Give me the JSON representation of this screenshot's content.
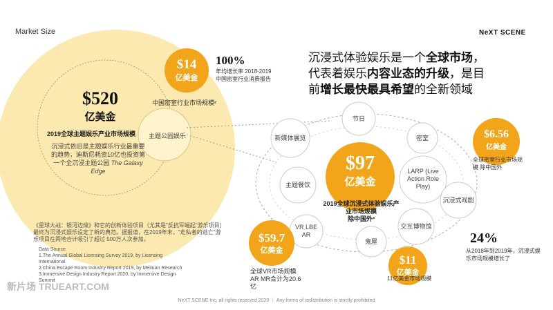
{
  "header": {
    "title": "Market Size",
    "logo": "NeXT SCENE"
  },
  "headline": {
    "line1_a": "沉浸式体验娱乐是一个",
    "line1_b": "全球市场",
    "line1_c": "，",
    "line2_a": "代表着娱乐",
    "line2_b": "内容业态的升级",
    "line2_c": "，是目",
    "line3_a": "前",
    "line3_b": "增长最快最具希望",
    "line3_c": "的全新领域"
  },
  "theme_park": {
    "value": "$520",
    "unit": "亿美金",
    "label": "2019全球主题娱乐产业市场规模",
    "desc_1": "沉浸式依旧是主题娱乐行业最重要",
    "desc_2": "的趋势，迪斯尼耗资10亿也投资第",
    "desc_3": "一个全沉浸主题公园",
    "desc_italic": "The Galaxy Edge",
    "inner_label": "主题公园娱乐"
  },
  "escape_cn": {
    "value": "$14",
    "unit": "亿美金",
    "label": "中国密室行业市场规模²",
    "growth": "100%",
    "growth_1": "年均增长率 2018-2019",
    "growth_2": "中国密室行业消费报告"
  },
  "center": {
    "value": "$97",
    "unit": "亿美金",
    "label_1": "2019全球沉浸式体验娱乐产",
    "label_2": "业市场规模",
    "label_3": "除中国外³"
  },
  "ring_items": {
    "festival": "节日",
    "new_media": "新媒体展览",
    "escape": "密室",
    "larp": "LARP (Live Action Role Play)",
    "theme_dining": "主题餐饮",
    "immersive_theatre": "沉浸式戏剧",
    "vr": "VR LBE AR",
    "interactive_museum": "交互博物馆",
    "haunted": "鬼屋"
  },
  "escape_world": {
    "value": "$6.56",
    "unit": "亿美金",
    "label_1": "全球密室行业市场规",
    "label_2": "模 除中国外"
  },
  "vr_market": {
    "value": "$59.7",
    "unit": "亿美金",
    "label_1": "全球VR市场规模",
    "label_2": "AR MR合计为20.6",
    "label_3": "亿"
  },
  "haunted_market": {
    "value": "$11",
    "unit": "亿美金",
    "label": "11亿美金市场规模"
  },
  "growth_24": {
    "value": "24%",
    "desc_1": "从2018年到2019年，沉浸式娱",
    "desc_2": "乐市场规模增长了"
  },
  "star_wars_note": {
    "line1": "《星球大战：银河边缘》和它的创新体验项目（尤其是\"反抗军崛起\"游乐项目）",
    "line2": "最终为沉浸式娱乐设定了新的典范。据报道，在2019年末，\"走私者的逃亡\"游",
    "line3": "乐项目在两地合计吸引了超过 500万人次参加。"
  },
  "sources": {
    "title": "Data Source",
    "s1": "1.The Annual Global Licensing Survey 2019, by Licensing",
    "s1b": "International",
    "s2": "2.China Escape Room Industry Report 2019, by Meituan Research",
    "s3": "3.Immersive Design Industry Report 2020, by Immersive Design",
    "s3b": "Summit"
  },
  "footer": "NeXT SCENE Inc, all rights reserved 2020 ｜ Any forms of redistribution is strictly prohibited",
  "watermark": "新片场 TRUEART.COM",
  "colors": {
    "orange": "#e39412",
    "yellow_fill": "#fbe7a6",
    "dark": "#222222"
  }
}
